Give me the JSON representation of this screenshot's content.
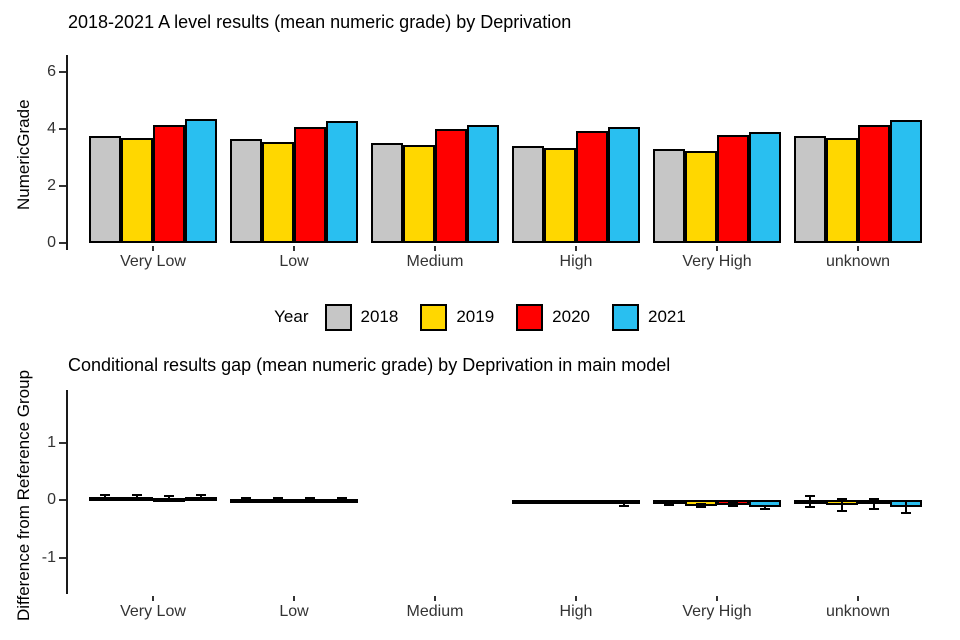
{
  "figure": {
    "background": "#ffffff"
  },
  "legend": {
    "title": "Year",
    "entries": [
      {
        "label": "2018",
        "color": "#C6C6C6"
      },
      {
        "label": "2019",
        "color": "#FFD700"
      },
      {
        "label": "2020",
        "color": "#FF0000"
      },
      {
        "label": "2021",
        "color": "#29BFF0"
      }
    ]
  },
  "chart_data": [
    {
      "type": "bar",
      "title": "2018-2021 A level results (mean numeric grade) by Deprivation",
      "ylabel": "NumericGrade",
      "xlabel": "",
      "categories": [
        "Very Low",
        "Low",
        "Medium",
        "High",
        "Very High",
        "unknown"
      ],
      "yticks": [
        0,
        2,
        4,
        6
      ],
      "ylim": [
        0,
        6.8
      ],
      "grid": false,
      "legend_position": "bottom",
      "bar_outline": "#000000",
      "series": [
        {
          "name": "2018",
          "color": "#C6C6C6",
          "values": [
            3.75,
            3.65,
            3.51,
            3.4,
            3.3,
            3.75
          ]
        },
        {
          "name": "2019",
          "color": "#FFD700",
          "values": [
            3.68,
            3.54,
            3.44,
            3.33,
            3.23,
            3.68
          ]
        },
        {
          "name": "2020",
          "color": "#FF0000",
          "values": [
            4.14,
            4.07,
            4.0,
            3.93,
            3.79,
            4.14
          ]
        },
        {
          "name": "2021",
          "color": "#29BFF0",
          "values": [
            4.35,
            4.28,
            4.14,
            4.07,
            3.89,
            4.31
          ]
        }
      ]
    },
    {
      "type": "bar",
      "title": "Conditional results gap (mean numeric grade) by Deprivation in main model",
      "ylabel": "Difference from Reference Group",
      "xlabel": "",
      "categories": [
        "Very Low",
        "Low",
        "Medium",
        "High",
        "Very High",
        "unknown"
      ],
      "yticks": [
        -1,
        0,
        1
      ],
      "ylim": [
        -1.6,
        1.9
      ],
      "grid": false,
      "bar_outline": "#000000",
      "series": [
        {
          "name": "2018",
          "color": "#C6C6C6",
          "values": [
            0.05,
            0.02,
            null,
            -0.03,
            -0.06,
            -0.03
          ],
          "errors": [
            0.03,
            0.02,
            null,
            0.02,
            0.03,
            0.1
          ]
        },
        {
          "name": "2019",
          "color": "#FFD700",
          "values": [
            0.05,
            0.02,
            null,
            -0.04,
            -0.1,
            -0.09
          ],
          "errors": [
            0.03,
            0.02,
            null,
            0.02,
            0.03,
            0.1
          ]
        },
        {
          "name": "2020",
          "color": "#FF0000",
          "values": [
            0.04,
            0.02,
            null,
            -0.04,
            -0.08,
            -0.07
          ],
          "errors": [
            0.03,
            0.02,
            null,
            0.02,
            0.03,
            0.09
          ]
        },
        {
          "name": "2021",
          "color": "#29BFF0",
          "values": [
            0.06,
            0.02,
            null,
            -0.07,
            -0.13,
            -0.12
          ],
          "errors": [
            0.03,
            0.02,
            null,
            0.03,
            0.03,
            0.1
          ]
        }
      ]
    }
  ]
}
